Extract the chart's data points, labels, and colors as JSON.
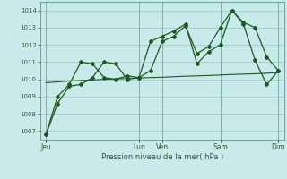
{
  "background_color": "#c8eaea",
  "grid_color": "#9ecece",
  "line_color": "#1a5c1a",
  "xlabel": "Pression niveau de la mer( hPa )",
  "ylim": [
    1006.5,
    1014.5
  ],
  "yticks": [
    1007,
    1008,
    1009,
    1010,
    1011,
    1012,
    1013,
    1014
  ],
  "x_tick_positions": [
    0,
    8,
    10,
    15,
    20
  ],
  "x_tick_labels": [
    "Jeu",
    "Lun",
    "Ven",
    "Sam",
    "Dim"
  ],
  "total_points": 21,
  "series1_y": [
    1006.8,
    1008.6,
    1009.6,
    1009.7,
    1010.1,
    1011.0,
    1010.9,
    1010.0,
    1010.1,
    1010.5,
    1012.2,
    1012.5,
    1013.1,
    1011.5,
    1011.9,
    1013.0,
    1014.0,
    1013.3,
    1013.0,
    1011.3,
    1010.5
  ],
  "series2_y": [
    1006.8,
    1009.0,
    1009.7,
    1011.0,
    1010.9,
    1010.1,
    1010.0,
    1010.2,
    1010.1,
    1012.2,
    1012.5,
    1012.8,
    1013.2,
    1010.9,
    1011.6,
    1012.0,
    1014.0,
    1013.2,
    1011.1,
    1009.7,
    1010.5
  ],
  "series3_y": [
    1009.8,
    1009.85,
    1009.9,
    1009.93,
    1009.96,
    1010.0,
    1010.02,
    1010.05,
    1010.08,
    1010.1,
    1010.12,
    1010.15,
    1010.18,
    1010.2,
    1010.22,
    1010.25,
    1010.28,
    1010.3,
    1010.32,
    1010.35,
    1010.4
  ],
  "vline_positions": [
    0,
    8,
    10,
    15,
    20
  ]
}
